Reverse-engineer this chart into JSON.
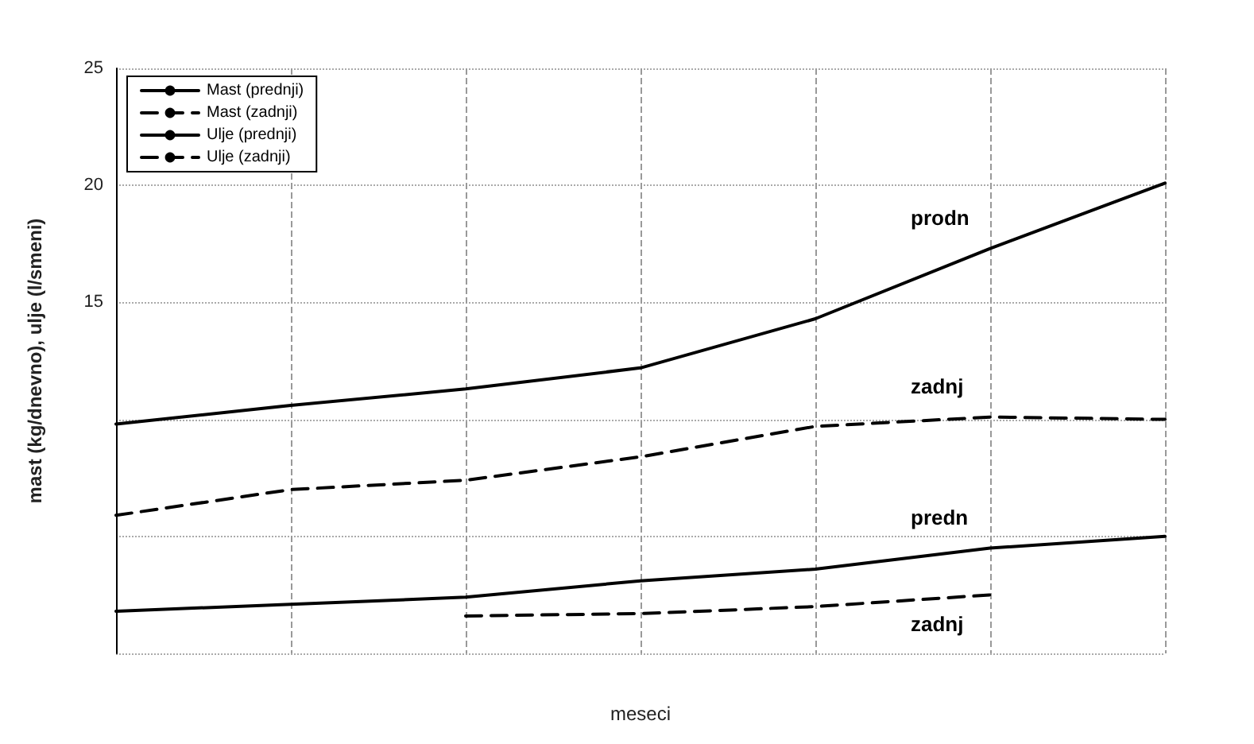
{
  "chart_data": {
    "type": "line",
    "xlabel": "meseci",
    "ylabel": "mast (kg/dnevno), ulje (l/smeni)",
    "categories": [
      null,
      null,
      null,
      null,
      null,
      null,
      null
    ],
    "ylim": [
      0,
      25
    ],
    "yticks": [
      {
        "value": 0,
        "label": null
      },
      {
        "value": 5,
        "label": null
      },
      {
        "value": 10,
        "label": null
      },
      15,
      20,
      25
    ],
    "grid": true,
    "legend": "top left",
    "marker": "none",
    "tick_labels": "y",
    "series": [
      {
        "name": "Mast (prednji)",
        "color": "#000000",
        "line_style": "solid",
        "values": [
          9.8,
          10.6,
          11.3,
          12.2,
          14.3,
          17.3,
          20.1
        ]
      },
      {
        "name": "Mast (zadnji)",
        "color": "#000000",
        "line_style": "dashed",
        "values": [
          5.9,
          7.0,
          7.4,
          8.4,
          9.7,
          10.1,
          10.0
        ]
      },
      {
        "name": "Ulje (prednji)",
        "color": "#000000",
        "line_style": "solid",
        "values": [
          1.8,
          2.1,
          2.4,
          3.1,
          3.6,
          4.5,
          5.0
        ]
      },
      {
        "name": "Ulje (zadnji)",
        "color": "#000000",
        "line_style": "dashed",
        "values": [
          null,
          null,
          1.6,
          1.7,
          2.0,
          2.5,
          null
        ]
      }
    ],
    "annotations": [
      "prodn",
      "zadnj",
      "predn",
      "zadnj"
    ]
  }
}
